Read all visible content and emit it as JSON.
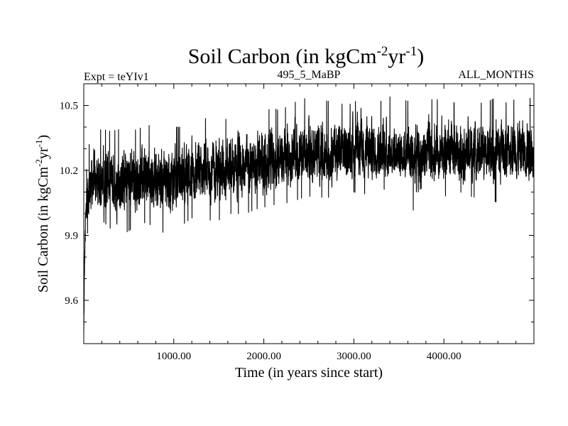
{
  "chart_data": {
    "type": "line",
    "title": "Soil Carbon (in kgCm",
    "title_sup1": "-2",
    "title_mid": "yr",
    "title_sup2": "-1",
    "title_end": ")",
    "subtitle_left": "Expt = teYIv1",
    "subtitle_center": "495_5_MaBP",
    "subtitle_right": "ALL_MONTHS",
    "xlabel": "Time (in years since start)",
    "ylabel": "Soil Carbon (in kgCm",
    "ylabel_sup1": "-2",
    "ylabel_mid": "yr",
    "ylabel_sup2": "-1",
    "ylabel_end": ")",
    "xlim": [
      0,
      5000
    ],
    "ylim": [
      9.4,
      10.6
    ],
    "x_ticks": [
      1000,
      2000,
      3000,
      4000
    ],
    "x_tick_labels": [
      "1000.00",
      "2000.00",
      "3000.00",
      "4000.00"
    ],
    "y_ticks": [
      9.6,
      9.9,
      10.2,
      10.5
    ],
    "y_tick_labels": [
      "9.6",
      "9.9",
      "10.2",
      "10.5"
    ],
    "grid": false,
    "series": [
      {
        "line_color": "#000000",
        "x": [
          0,
          5,
          10,
          20,
          30,
          50,
          75,
          100,
          150,
          200,
          300,
          400,
          500,
          600,
          700,
          800,
          900,
          1000,
          1100,
          1200,
          1300,
          1400,
          1500,
          1600,
          1700,
          1800,
          1900,
          2000,
          2100,
          2200,
          2300,
          2400,
          2500,
          2600,
          2700,
          2800,
          2900,
          3000,
          3100,
          3200,
          3300,
          3400,
          3500,
          3600,
          3700,
          3800,
          3900,
          4000,
          4100,
          4200,
          4300,
          4400,
          4500,
          4600,
          4700,
          4800,
          4900,
          5000
        ],
        "mean": [
          9.45,
          9.62,
          9.8,
          9.95,
          10.02,
          10.08,
          10.11,
          10.13,
          10.14,
          10.15,
          10.15,
          10.15,
          10.15,
          10.15,
          10.16,
          10.16,
          10.16,
          10.17,
          10.17,
          10.18,
          10.18,
          10.19,
          10.19,
          10.2,
          10.21,
          10.22,
          10.22,
          10.23,
          10.24,
          10.25,
          10.25,
          10.26,
          10.27,
          10.27,
          10.27,
          10.28,
          10.28,
          10.28,
          10.28,
          10.28,
          10.28,
          10.28,
          10.28,
          10.27,
          10.25,
          10.27,
          10.28,
          10.28,
          10.28,
          10.28,
          10.28,
          10.28,
          10.28,
          10.28,
          10.29,
          10.29,
          10.29,
          10.29
        ],
        "upper": [
          9.5,
          9.75,
          9.95,
          10.1,
          10.2,
          10.3,
          10.35,
          10.37,
          10.38,
          10.39,
          10.38,
          10.39,
          10.38,
          10.39,
          10.41,
          10.4,
          10.39,
          10.4,
          10.4,
          10.43,
          10.44,
          10.44,
          10.46,
          10.43,
          10.44,
          10.46,
          10.45,
          10.47,
          10.49,
          10.47,
          10.52,
          10.51,
          10.55,
          10.54,
          10.52,
          10.52,
          10.5,
          10.51,
          10.56,
          10.53,
          10.52,
          10.54,
          10.53,
          10.52,
          10.49,
          10.52,
          10.53,
          10.52,
          10.51,
          10.53,
          10.52,
          10.51,
          10.52,
          10.54,
          10.51,
          10.53,
          10.55,
          10.52
        ],
        "lower": [
          9.43,
          9.5,
          9.65,
          9.8,
          9.88,
          9.93,
          9.95,
          9.96,
          9.95,
          9.97,
          9.93,
          9.9,
          9.92,
          9.95,
          9.96,
          9.93,
          9.91,
          9.92,
          9.95,
          9.98,
          9.98,
          9.97,
          9.97,
          10.0,
          10.0,
          10.0,
          10.02,
          10.03,
          10.04,
          10.05,
          10.05,
          10.07,
          10.08,
          10.08,
          10.07,
          10.1,
          10.1,
          10.1,
          10.09,
          10.1,
          10.12,
          10.1,
          10.11,
          10.1,
          9.96,
          10.08,
          10.1,
          10.08,
          10.09,
          10.1,
          10.08,
          10.07,
          10.07,
          10.05,
          10.1,
          10.1,
          10.08,
          10.12
        ]
      }
    ]
  }
}
